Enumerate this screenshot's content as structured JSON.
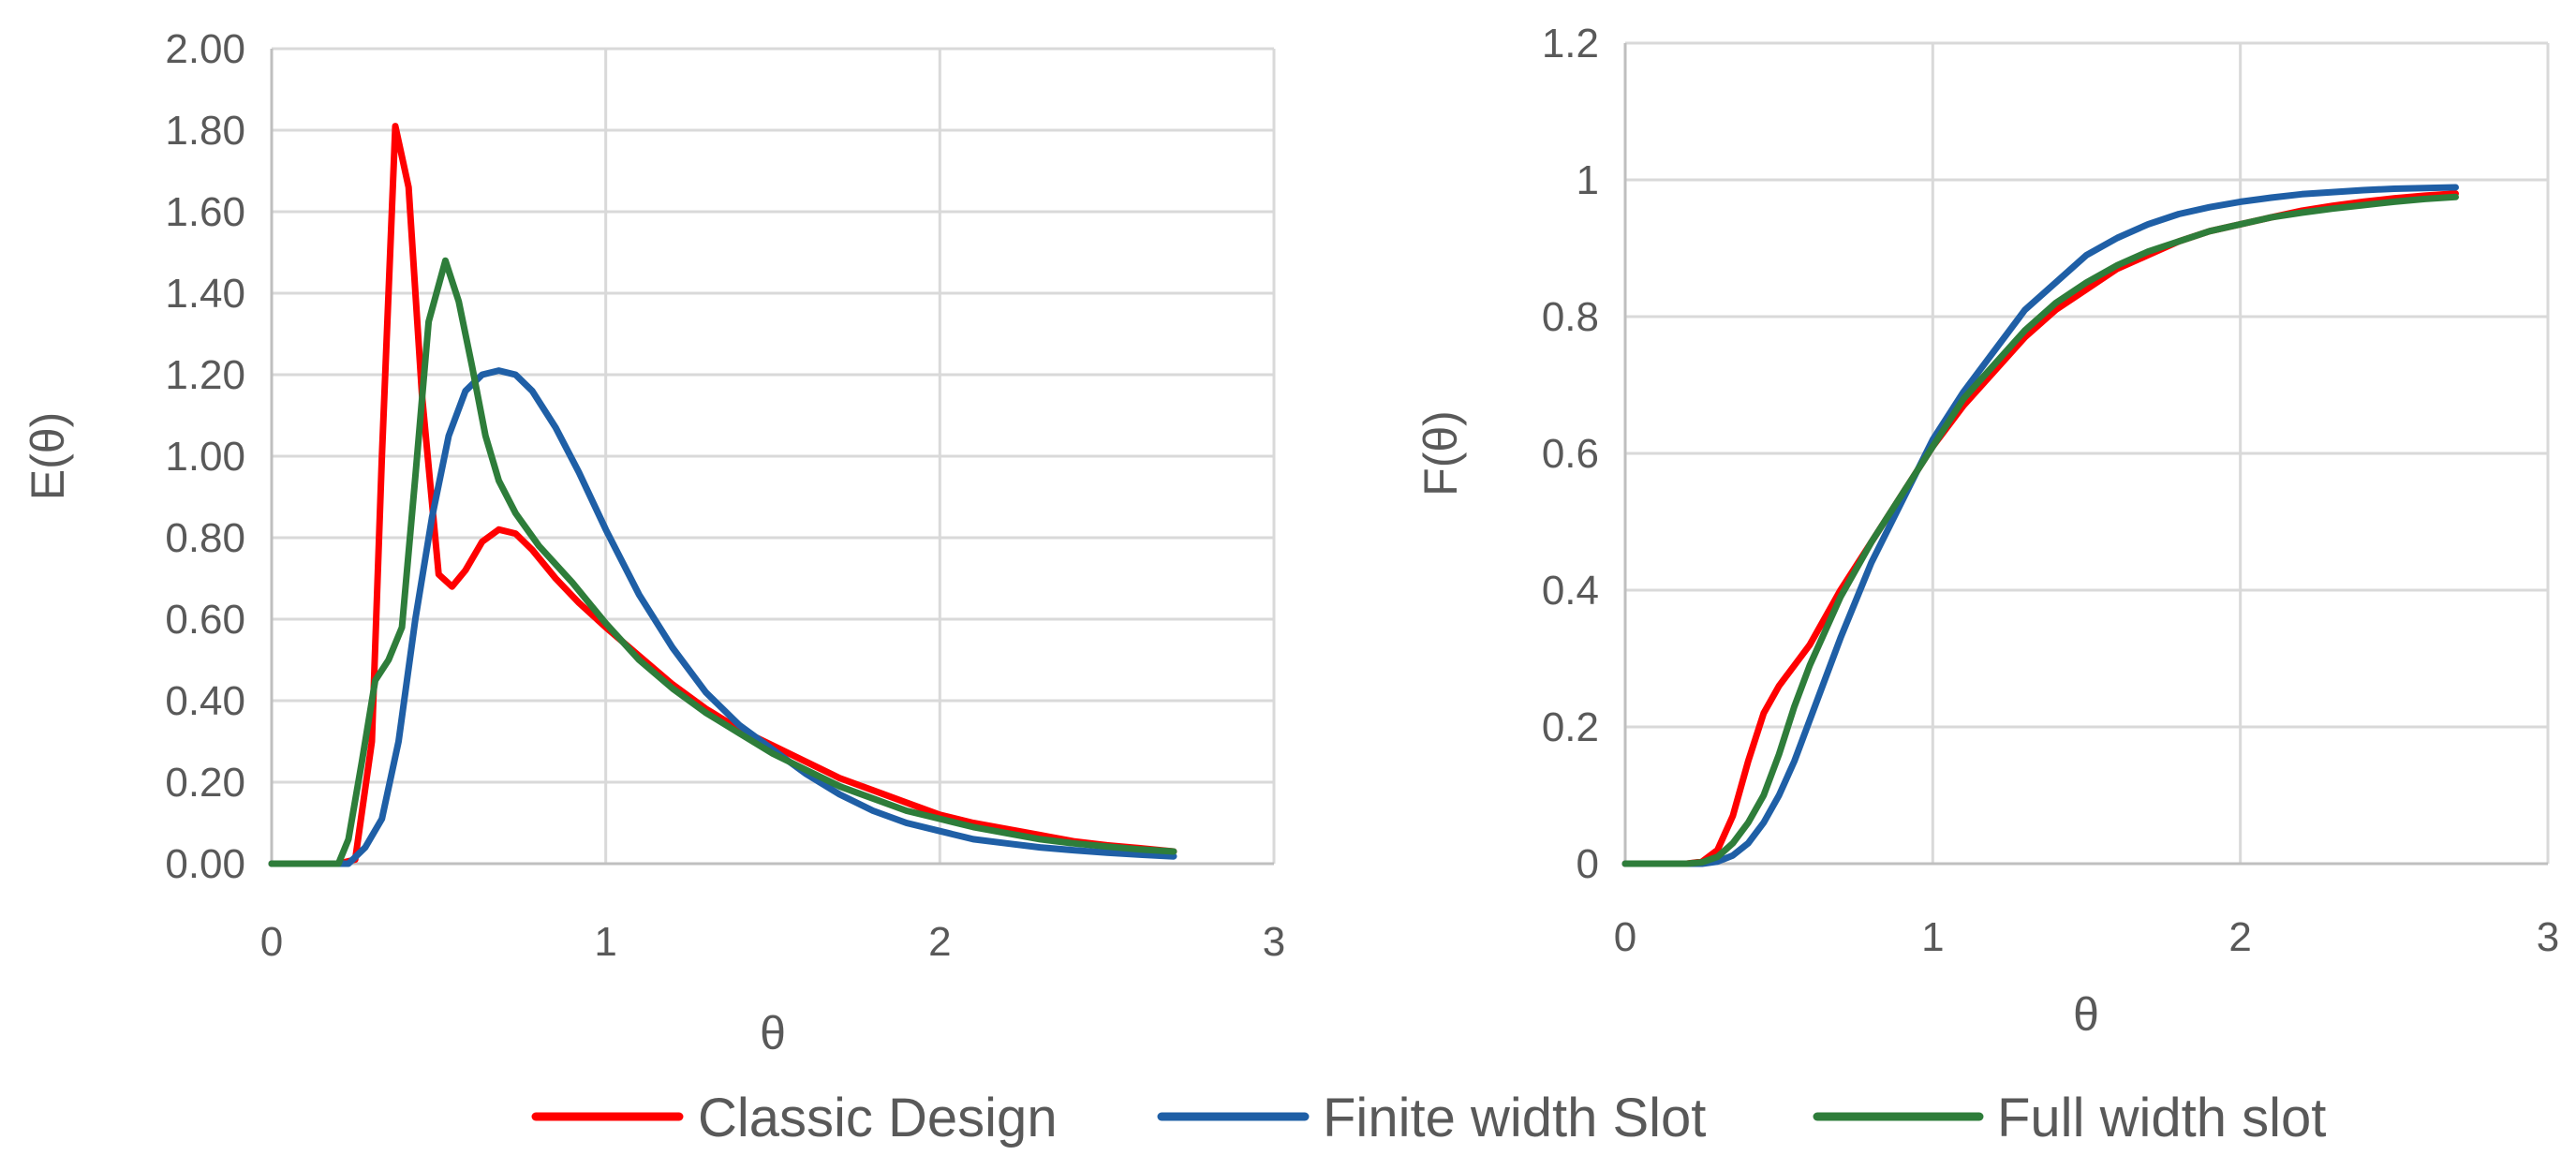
{
  "chart_data": [
    {
      "type": "line",
      "title": "",
      "xlabel": "θ",
      "ylabel": "E(θ)",
      "xlim": [
        0,
        3
      ],
      "ylim": [
        0,
        2
      ],
      "xticks": [
        0,
        1,
        2,
        3
      ],
      "xtick_labels": [
        "0",
        "1",
        "2",
        "3"
      ],
      "yticks": [
        0,
        0.2,
        0.4,
        0.6,
        0.8,
        1.0,
        1.2,
        1.4,
        1.6,
        1.8,
        2.0
      ],
      "ytick_labels": [
        "0.00",
        "0.20",
        "0.40",
        "0.60",
        "0.80",
        "1.00",
        "1.20",
        "1.40",
        "1.60",
        "1.80",
        "2.00"
      ],
      "grid": true,
      "series": [
        {
          "name": "Classic Design",
          "color": "#ff0000",
          "x": [
            0,
            0.1,
            0.2,
            0.25,
            0.3,
            0.33,
            0.37,
            0.41,
            0.45,
            0.5,
            0.54,
            0.58,
            0.63,
            0.68,
            0.73,
            0.78,
            0.85,
            0.92,
            1.0,
            1.1,
            1.2,
            1.3,
            1.4,
            1.5,
            1.6,
            1.7,
            1.8,
            1.9,
            2.0,
            2.1,
            2.2,
            2.3,
            2.4,
            2.5,
            2.6,
            2.7
          ],
          "y": [
            0,
            0,
            0,
            0.01,
            0.3,
            1.0,
            1.81,
            1.66,
            1.15,
            0.71,
            0.68,
            0.72,
            0.79,
            0.82,
            0.81,
            0.77,
            0.7,
            0.64,
            0.58,
            0.51,
            0.44,
            0.38,
            0.33,
            0.29,
            0.25,
            0.21,
            0.18,
            0.15,
            0.12,
            0.1,
            0.085,
            0.07,
            0.055,
            0.045,
            0.038,
            0.03
          ]
        },
        {
          "name": "Finite width Slot",
          "color": "#1f5fa6",
          "x": [
            0,
            0.1,
            0.2,
            0.23,
            0.28,
            0.33,
            0.38,
            0.43,
            0.48,
            0.53,
            0.58,
            0.63,
            0.68,
            0.73,
            0.78,
            0.85,
            0.92,
            1.0,
            1.1,
            1.2,
            1.3,
            1.4,
            1.5,
            1.6,
            1.7,
            1.8,
            1.9,
            2.0,
            2.1,
            2.2,
            2.3,
            2.4,
            2.5,
            2.6,
            2.7
          ],
          "y": [
            0,
            0,
            0,
            0.0,
            0.04,
            0.11,
            0.3,
            0.6,
            0.85,
            1.05,
            1.16,
            1.2,
            1.21,
            1.2,
            1.16,
            1.07,
            0.96,
            0.82,
            0.66,
            0.53,
            0.42,
            0.34,
            0.28,
            0.22,
            0.17,
            0.13,
            0.1,
            0.08,
            0.06,
            0.05,
            0.04,
            0.033,
            0.027,
            0.022,
            0.018
          ]
        },
        {
          "name": "Full width slot",
          "color": "#2e7d3a",
          "x": [
            0,
            0.1,
            0.2,
            0.23,
            0.27,
            0.31,
            0.35,
            0.39,
            0.43,
            0.47,
            0.52,
            0.56,
            0.6,
            0.64,
            0.68,
            0.73,
            0.8,
            0.9,
            1.0,
            1.1,
            1.2,
            1.3,
            1.4,
            1.5,
            1.6,
            1.7,
            1.8,
            1.9,
            2.0,
            2.1,
            2.2,
            2.3,
            2.4,
            2.5,
            2.6,
            2.7
          ],
          "y": [
            0,
            0,
            0,
            0.06,
            0.25,
            0.45,
            0.5,
            0.58,
            0.95,
            1.33,
            1.48,
            1.38,
            1.22,
            1.05,
            0.94,
            0.86,
            0.78,
            0.69,
            0.59,
            0.5,
            0.43,
            0.37,
            0.32,
            0.27,
            0.23,
            0.19,
            0.16,
            0.13,
            0.11,
            0.09,
            0.075,
            0.06,
            0.05,
            0.042,
            0.035,
            0.03
          ]
        }
      ]
    },
    {
      "type": "line",
      "title": "",
      "xlabel": "θ",
      "ylabel": "F(θ)",
      "xlim": [
        0,
        3
      ],
      "ylim": [
        0,
        1.2
      ],
      "xticks": [
        0,
        1,
        2,
        3
      ],
      "xtick_labels": [
        "0",
        "1",
        "2",
        "3"
      ],
      "yticks": [
        0,
        0.2,
        0.4,
        0.6,
        0.8,
        1.0,
        1.2
      ],
      "ytick_labels": [
        "0",
        "0.2",
        "0.4",
        "0.6",
        "0.8",
        "1",
        "1.2"
      ],
      "grid": true,
      "series": [
        {
          "name": "Classic Design",
          "color": "#ff0000",
          "x": [
            0,
            0.1,
            0.2,
            0.25,
            0.3,
            0.35,
            0.4,
            0.45,
            0.5,
            0.55,
            0.6,
            0.65,
            0.7,
            0.8,
            0.9,
            1.0,
            1.1,
            1.2,
            1.3,
            1.4,
            1.5,
            1.6,
            1.7,
            1.8,
            1.9,
            2.0,
            2.1,
            2.2,
            2.3,
            2.4,
            2.5,
            2.6,
            2.7
          ],
          "y": [
            0,
            0,
            0,
            0.003,
            0.02,
            0.07,
            0.15,
            0.22,
            0.26,
            0.29,
            0.32,
            0.36,
            0.4,
            0.47,
            0.54,
            0.61,
            0.67,
            0.72,
            0.77,
            0.81,
            0.84,
            0.87,
            0.89,
            0.91,
            0.925,
            0.935,
            0.945,
            0.955,
            0.962,
            0.968,
            0.973,
            0.977,
            0.98
          ]
        },
        {
          "name": "Finite width Slot",
          "color": "#1f5fa6",
          "x": [
            0,
            0.1,
            0.2,
            0.25,
            0.3,
            0.35,
            0.4,
            0.45,
            0.5,
            0.55,
            0.6,
            0.65,
            0.7,
            0.8,
            0.9,
            1.0,
            1.1,
            1.2,
            1.3,
            1.4,
            1.5,
            1.6,
            1.7,
            1.8,
            1.9,
            2.0,
            2.1,
            2.2,
            2.3,
            2.4,
            2.5,
            2.6,
            2.7
          ],
          "y": [
            0,
            0,
            0,
            0.0,
            0.003,
            0.012,
            0.03,
            0.06,
            0.1,
            0.15,
            0.21,
            0.27,
            0.33,
            0.44,
            0.53,
            0.62,
            0.69,
            0.75,
            0.81,
            0.85,
            0.89,
            0.915,
            0.935,
            0.95,
            0.96,
            0.968,
            0.974,
            0.979,
            0.982,
            0.985,
            0.987,
            0.988,
            0.989
          ]
        },
        {
          "name": "Full width slot",
          "color": "#2e7d3a",
          "x": [
            0,
            0.1,
            0.2,
            0.25,
            0.3,
            0.35,
            0.4,
            0.45,
            0.5,
            0.55,
            0.6,
            0.65,
            0.7,
            0.8,
            0.9,
            1.0,
            1.1,
            1.2,
            1.3,
            1.4,
            1.5,
            1.6,
            1.7,
            1.8,
            1.9,
            2.0,
            2.1,
            2.2,
            2.3,
            2.4,
            2.5,
            2.6,
            2.7
          ],
          "y": [
            0,
            0,
            0,
            0.002,
            0.01,
            0.03,
            0.06,
            0.1,
            0.16,
            0.23,
            0.29,
            0.34,
            0.39,
            0.47,
            0.54,
            0.61,
            0.68,
            0.73,
            0.78,
            0.82,
            0.85,
            0.875,
            0.895,
            0.91,
            0.925,
            0.935,
            0.945,
            0.952,
            0.958,
            0.963,
            0.968,
            0.972,
            0.975
          ]
        }
      ]
    }
  ],
  "legend": {
    "position": "bottom",
    "items": [
      {
        "label": "Classic Design",
        "color": "#ff0000"
      },
      {
        "label": "Finite width Slot",
        "color": "#1f5fa6"
      },
      {
        "label": "Full width slot",
        "color": "#2e7d3a"
      }
    ]
  }
}
